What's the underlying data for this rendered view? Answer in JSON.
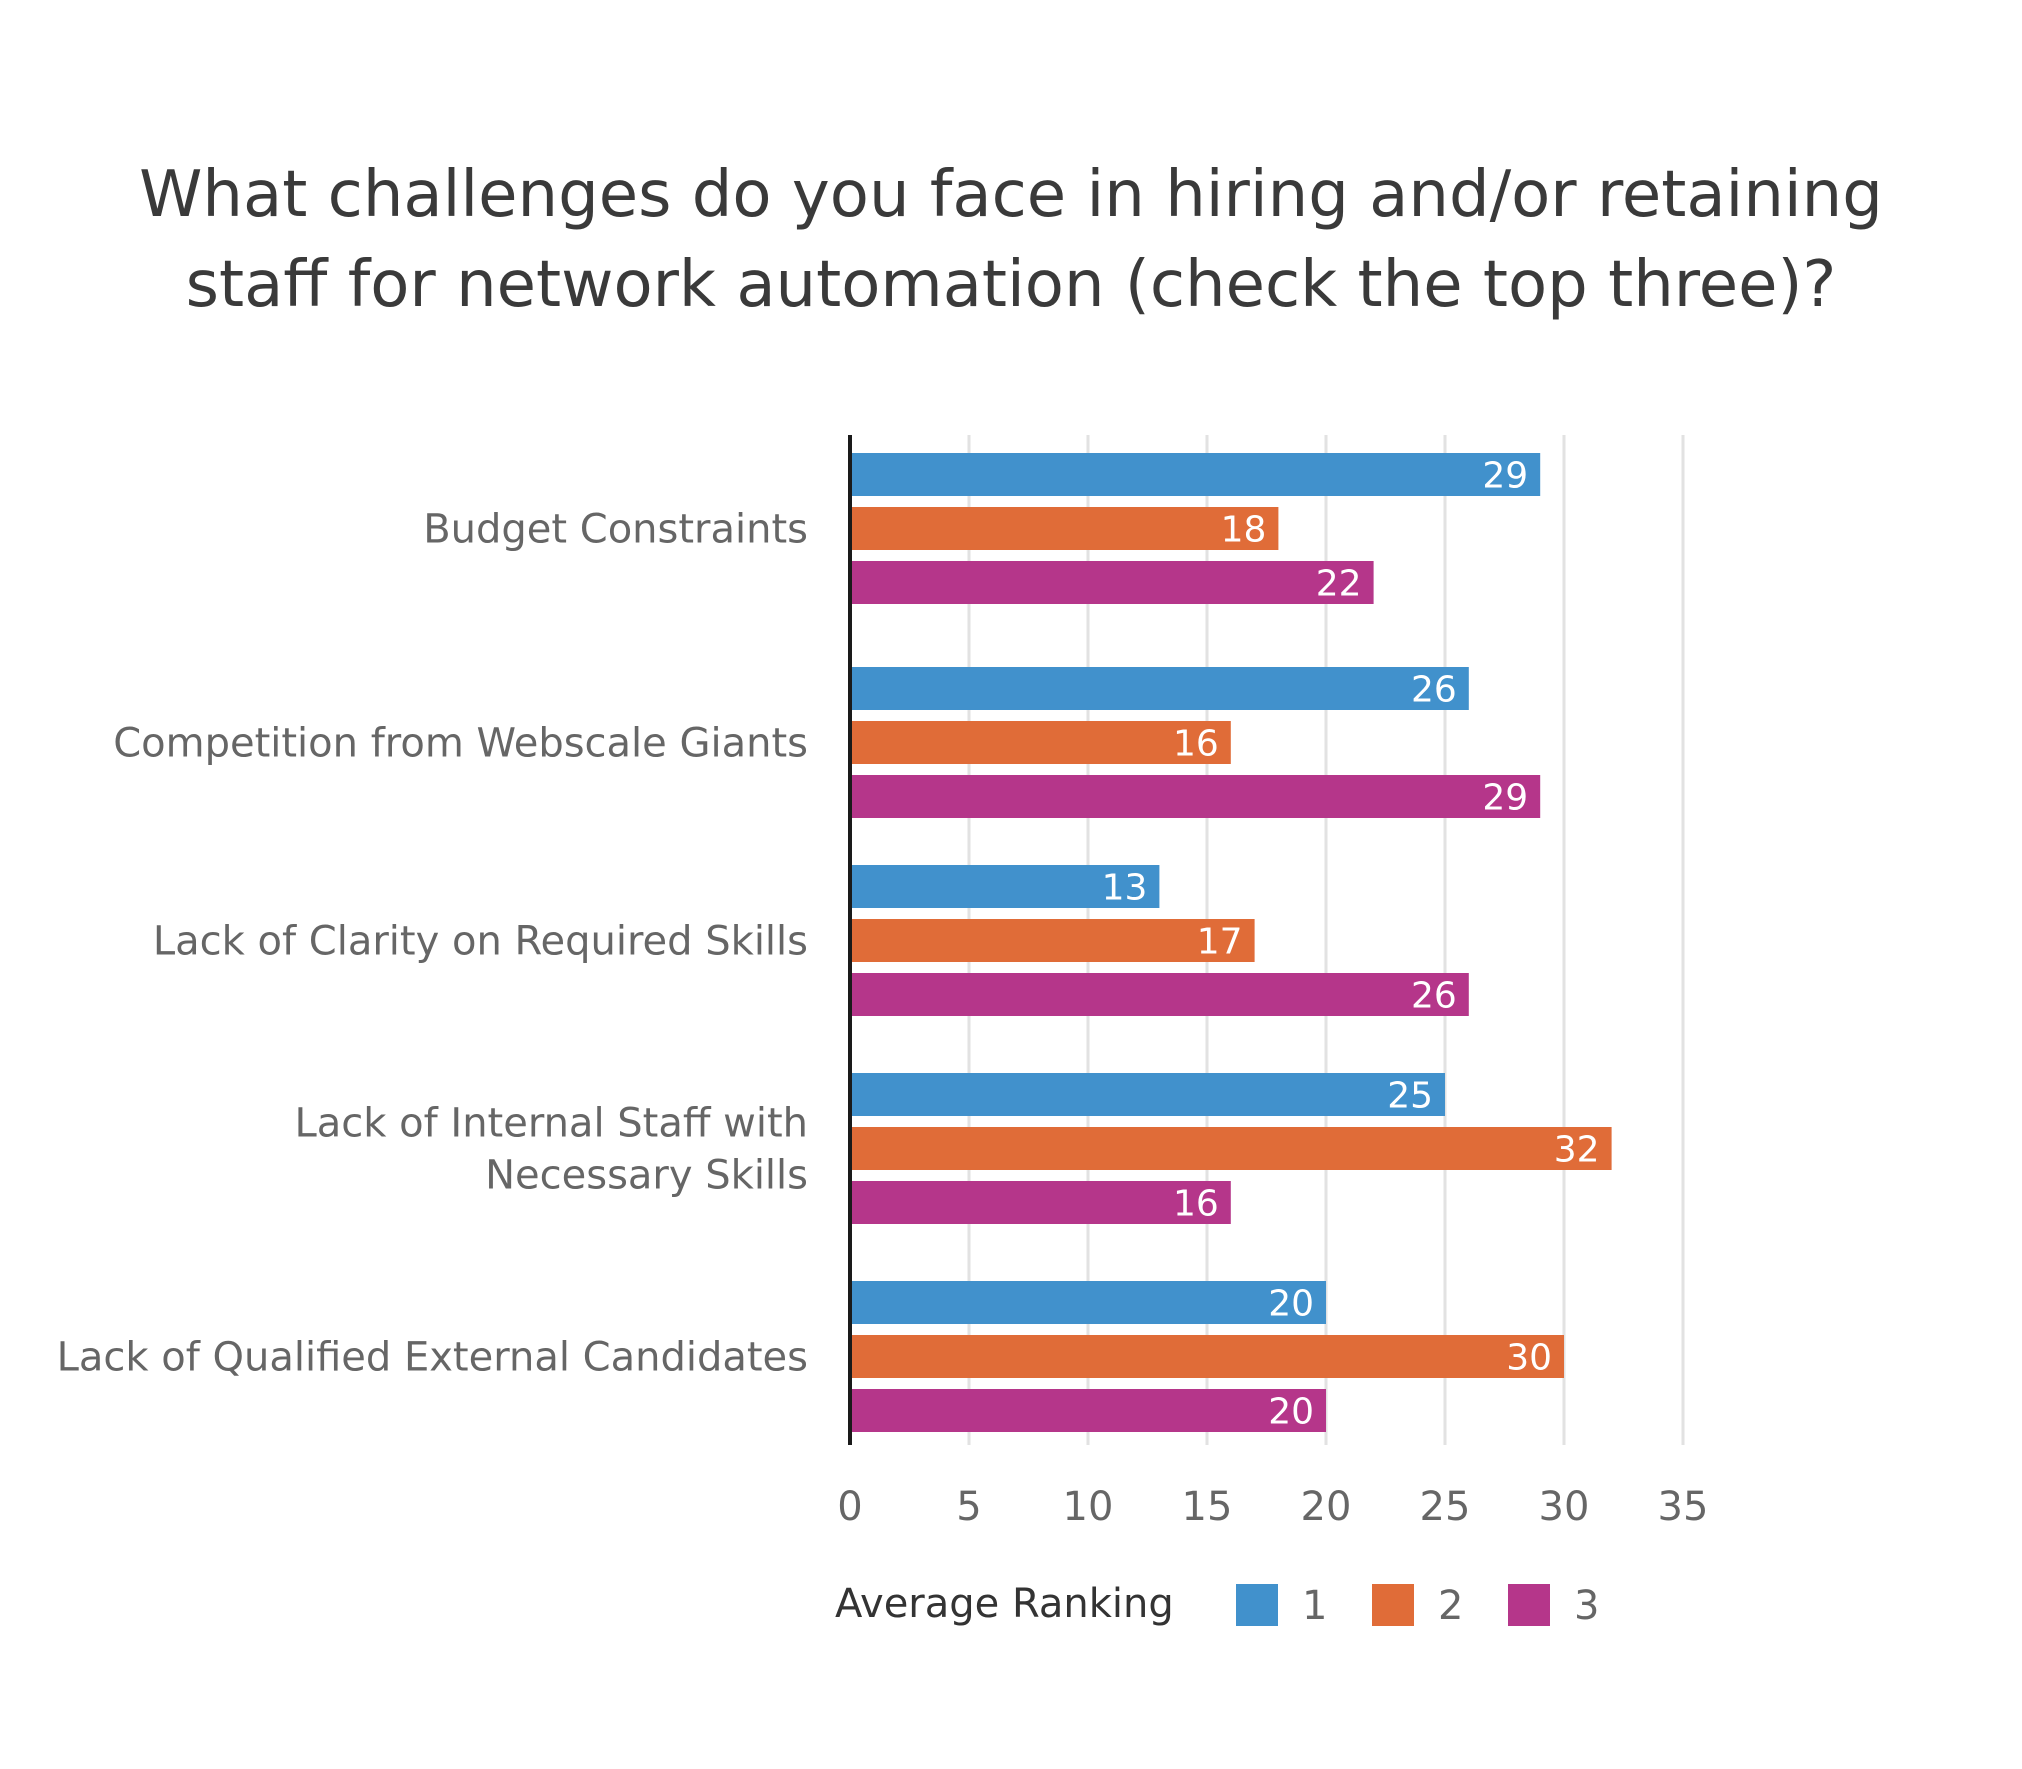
{
  "chart_data": {
    "type": "bar",
    "orientation": "horizontal",
    "title_lines": [
      "What challenges do you face in hiring and/or retaining",
      "staff for network automation (check the top three)?"
    ],
    "categories": [
      [
        "Budget Constraints"
      ],
      [
        "Competition from Webscale Giants"
      ],
      [
        "Lack of Clarity on Required Skills"
      ],
      [
        "Lack of Internal Staff with",
        "Necessary Skills"
      ],
      [
        "Lack of Qualified External Candidates"
      ]
    ],
    "series": [
      {
        "name": "1",
        "color": "#4191cc",
        "values": [
          29,
          26,
          13,
          25,
          20
        ]
      },
      {
        "name": "2",
        "color": "#e06c38",
        "values": [
          18,
          16,
          17,
          32,
          30
        ]
      },
      {
        "name": "3",
        "color": "#b5368a",
        "values": [
          22,
          29,
          26,
          16,
          20
        ]
      }
    ],
    "xlim": [
      0,
      35
    ],
    "xticks": [
      "0",
      "5",
      "10",
      "15",
      "20",
      "25",
      "30",
      "35"
    ],
    "grid": true,
    "legend": {
      "title": "Average Ranking",
      "position": "bottom-center"
    },
    "colors": {
      "text": "#666666",
      "title": "#3a3a3a",
      "grid": "#e2e2e2",
      "axis": "#1a1a1a",
      "data_label": "#ffffff"
    }
  }
}
